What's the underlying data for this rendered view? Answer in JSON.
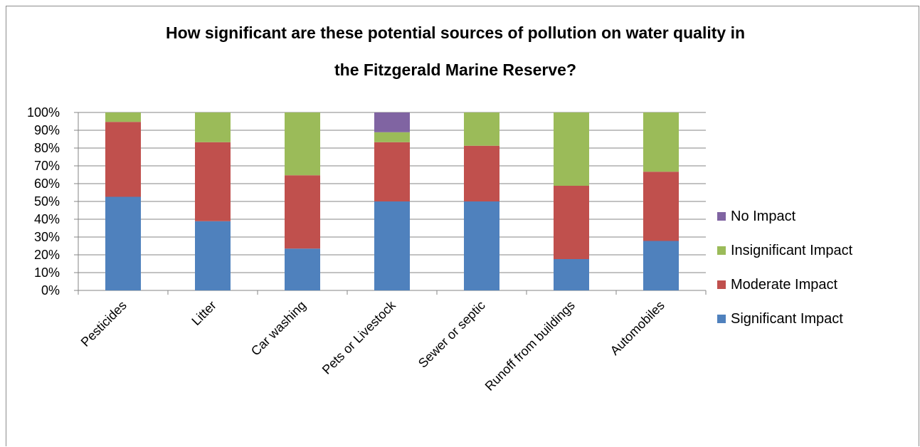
{
  "chart_data": {
    "type": "bar",
    "stacked": true,
    "percent": true,
    "title": "How significant are these potential sources of pollution on water quality in the Fitzgerald Marine Reserve?",
    "title_lines": [
      "How significant are these potential sources of pollution on water quality in",
      "the Fitzgerald Marine Reserve?"
    ],
    "categories": [
      "Pesticides",
      "Litter",
      "Car washing",
      "Pets or Livestock",
      "Sewer or septic",
      "Runoff from buildings",
      "Automobiles"
    ],
    "series": [
      {
        "name": "Significant Impact",
        "color": "#4f81bd",
        "values": [
          52.6,
          38.9,
          23.5,
          50.0,
          50.0,
          17.6,
          27.8
        ]
      },
      {
        "name": "Moderate Impact",
        "color": "#c0504d",
        "values": [
          42.1,
          44.4,
          41.2,
          33.3,
          31.3,
          41.2,
          38.9
        ]
      },
      {
        "name": "Insignificant Impact",
        "color": "#9bbb59",
        "values": [
          5.3,
          16.7,
          35.3,
          5.6,
          18.7,
          41.2,
          33.3
        ]
      },
      {
        "name": "No Impact",
        "color": "#8064a2",
        "values": [
          0,
          0,
          0,
          11.1,
          0,
          0,
          0
        ]
      }
    ],
    "ylim": [
      0,
      100
    ],
    "yticks": [
      "0%",
      "10%",
      "20%",
      "30%",
      "40%",
      "50%",
      "60%",
      "70%",
      "80%",
      "90%",
      "100%"
    ],
    "xlabel": "",
    "ylabel": "",
    "grid": true,
    "legend_position": "right",
    "gridline_color": "#868686"
  }
}
